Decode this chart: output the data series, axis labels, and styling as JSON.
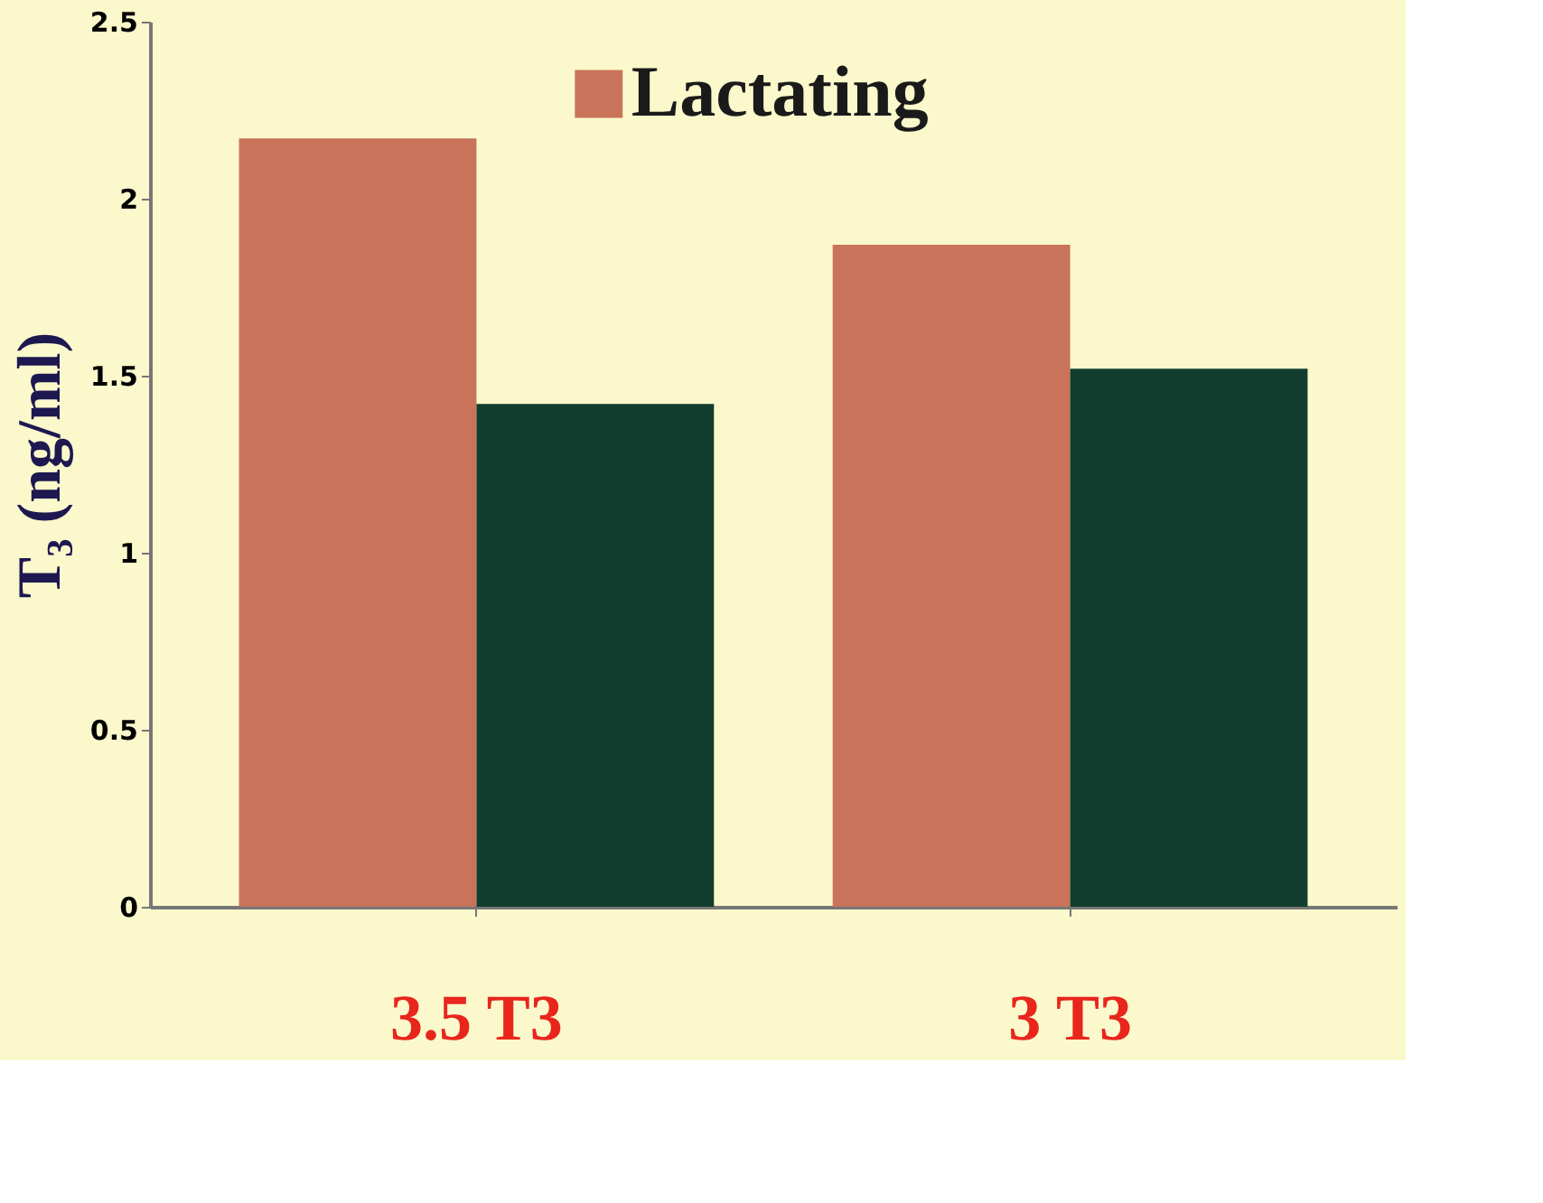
{
  "chart_data": {
    "type": "bar",
    "ylabel": "T₃ (ng/ml)",
    "categories": [
      "3.5 T3",
      "3 T3"
    ],
    "series": [
      {
        "name": "Lactating",
        "color": "#c8735a",
        "values": [
          2.17,
          1.87
        ]
      },
      {
        "color": "#123d2e",
        "values": [
          1.42,
          1.52
        ]
      }
    ],
    "ylim": [
      0,
      2.5
    ],
    "yticks": [
      0,
      0.5,
      1,
      1.5,
      2,
      2.5
    ],
    "grid": false,
    "legend": "top"
  }
}
